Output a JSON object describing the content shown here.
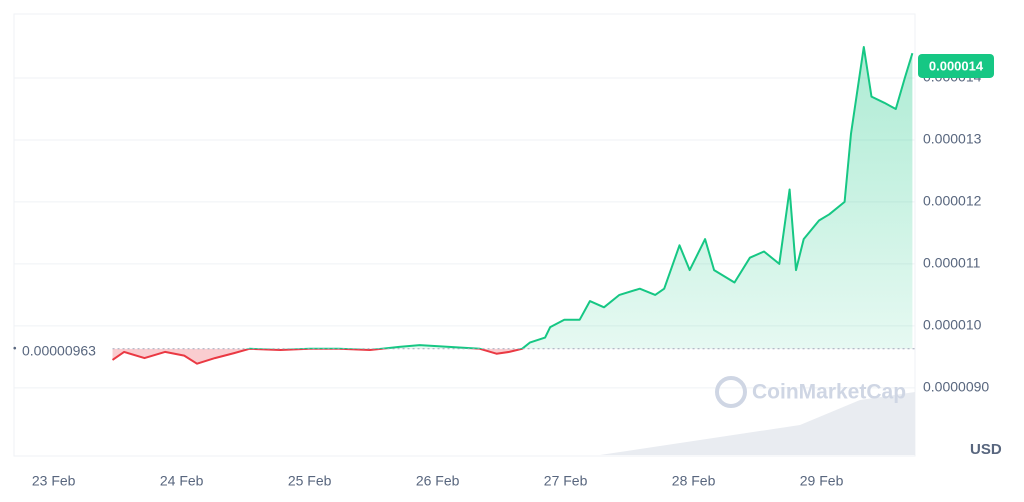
{
  "chart_data": {
    "type": "line",
    "x": [
      23.46,
      23.55,
      23.71,
      23.87,
      24.02,
      24.12,
      24.26,
      24.41,
      24.53,
      24.77,
      25.0,
      25.23,
      25.47,
      25.7,
      25.86,
      26.09,
      26.33,
      26.46,
      26.56,
      26.66,
      26.72,
      26.84,
      26.88,
      26.99,
      27.11,
      27.19,
      27.3,
      27.42,
      27.58,
      27.7,
      27.77,
      27.89,
      27.97,
      28.09,
      28.16,
      28.32,
      28.44,
      28.55,
      28.67,
      28.75,
      28.8,
      28.86,
      28.98,
      29.06,
      29.18,
      29.23,
      29.33,
      29.39,
      29.49,
      29.58,
      29.65,
      29.71
    ],
    "series": [
      {
        "values": [
          9.45e-06,
          9.58e-06,
          9.48e-06,
          9.58e-06,
          9.52e-06,
          9.39e-06,
          9.48e-06,
          9.56e-06,
          9.63e-06,
          9.61e-06,
          9.63e-06,
          9.63e-06,
          9.61e-06,
          9.66e-06,
          9.69e-06,
          9.66e-06,
          9.63e-06,
          9.55e-06,
          9.58e-06,
          9.63e-06,
          9.73e-06,
          9.81e-06,
          9.98e-06,
          1.01e-05,
          1.01e-05,
          1.04e-05,
          1.03e-05,
          1.05e-05,
          1.06e-05,
          1.05e-05,
          1.06e-05,
          1.13e-05,
          1.09e-05,
          1.14e-05,
          1.09e-05,
          1.07e-05,
          1.11e-05,
          1.12e-05,
          1.1e-05,
          1.22e-05,
          1.09e-05,
          1.14e-05,
          1.17e-05,
          1.18e-05,
          1.2e-05,
          1.31e-05,
          1.45e-05,
          1.37e-05,
          1.36e-05,
          1.35e-05,
          1.4e-05,
          1.44e-05
        ]
      }
    ],
    "up_color": "#16c784",
    "down_color": "#ea3943",
    "baseline": {
      "value": 9.63e-06,
      "label": "0.00000963"
    },
    "current_price": 1.4e-05,
    "xlim": [
      22.69,
      29.73
    ],
    "xticks": [
      {
        "value": 23,
        "label": "23 Feb"
      },
      {
        "value": 24,
        "label": "24 Feb"
      },
      {
        "value": 25,
        "label": "25 Feb"
      },
      {
        "value": 26,
        "label": "26 Feb"
      },
      {
        "value": 27,
        "label": "27 Feb"
      },
      {
        "value": 28,
        "label": "28 Feb"
      },
      {
        "value": 29,
        "label": "29 Feb"
      }
    ],
    "ylim": [
      7.9e-06,
      1.5e-05
    ],
    "yticks": [
      {
        "value": 9e-06,
        "label": "0.0000090"
      },
      {
        "value": 1e-05,
        "label": "0.000010"
      },
      1.1e-05,
      1.2e-05,
      1.3e-05,
      1.4e-05
    ],
    "currency": "USD",
    "watermark": "CoinMarketCap",
    "grid": true
  }
}
